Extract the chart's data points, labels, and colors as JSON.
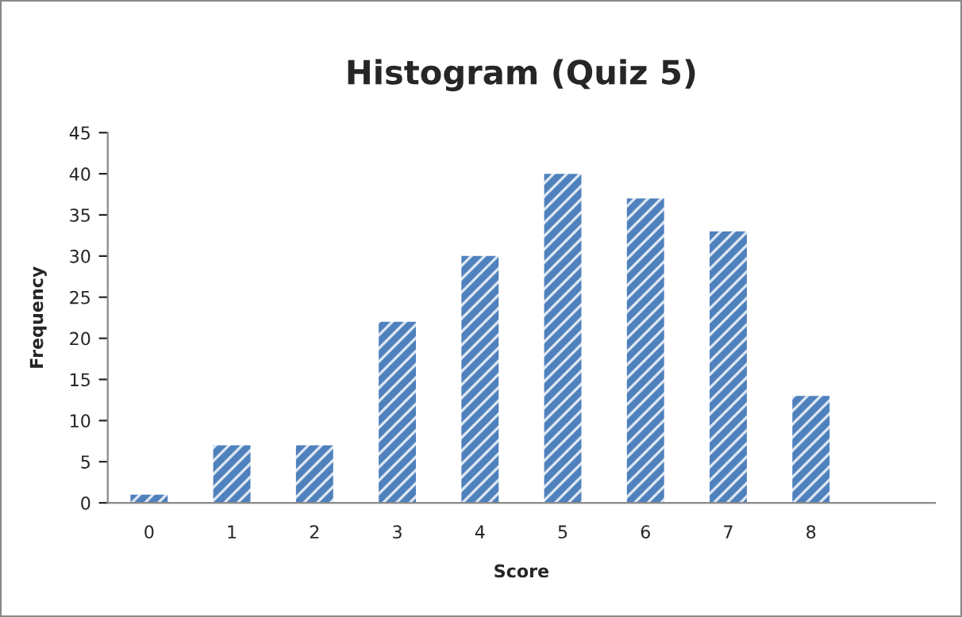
{
  "chart_data": {
    "type": "bar",
    "title": "Histogram (Quiz 5)",
    "xlabel": "Score",
    "ylabel": "Frequency",
    "categories": [
      "0",
      "1",
      "2",
      "3",
      "4",
      "5",
      "6",
      "7",
      "8",
      null
    ],
    "values": [
      1,
      7,
      7,
      22,
      30,
      40,
      37,
      33,
      13,
      null
    ],
    "color": "#4f81bd",
    "ylim": [
      0,
      45
    ],
    "yticks": [
      0,
      5,
      10,
      15,
      20,
      25,
      30,
      35,
      40,
      45
    ],
    "grid": false,
    "legend": false
  }
}
